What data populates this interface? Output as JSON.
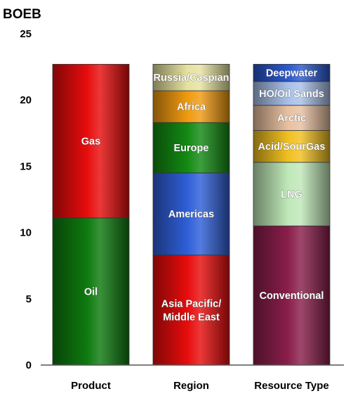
{
  "chart_data": {
    "type": "bar",
    "stacked": true,
    "ylabel": "BOEB",
    "ylim": [
      0,
      25
    ],
    "yticks": [
      "0",
      "5",
      "10",
      "15",
      "20",
      "25"
    ],
    "grid": false,
    "categories": [
      "Product",
      "Region",
      "Resource Type"
    ],
    "stacks": [
      {
        "category": "Product",
        "segments": [
          {
            "label": "Oil",
            "value": 11.1,
            "color": "#0e7a0e"
          },
          {
            "label": "Gas",
            "value": 11.6,
            "color": "#e80c0c"
          }
        ]
      },
      {
        "category": "Region",
        "segments": [
          {
            "label": "Asia Pacific/ Middle East",
            "value": 8.3,
            "color": "#e80c0c"
          },
          {
            "label": "Americas",
            "value": 6.2,
            "color": "#2f5fd8"
          },
          {
            "label": "Europe",
            "value": 3.8,
            "color": "#138a13"
          },
          {
            "label": "Africa",
            "value": 2.4,
            "color": "#f09a10"
          },
          {
            "label": "Russia/Caspian",
            "value": 2.0,
            "color": "#e6e2a0"
          }
        ]
      },
      {
        "category": "Resource Type",
        "segments": [
          {
            "label": "Conventional",
            "value": 10.5,
            "color": "#8a1e4a"
          },
          {
            "label": "LNG",
            "value": 4.8,
            "color": "#bfe8b8"
          },
          {
            "label": "Acid/SourGas",
            "value": 2.4,
            "color": "#f0c020"
          },
          {
            "label": "Arctic",
            "value": 1.9,
            "color": "#e8c0a0"
          },
          {
            "label": "HO/Oil Sands",
            "value": 1.8,
            "color": "#a8c0e8"
          },
          {
            "label": "Deepwater",
            "value": 1.3,
            "color": "#2a58d0"
          }
        ]
      }
    ]
  }
}
